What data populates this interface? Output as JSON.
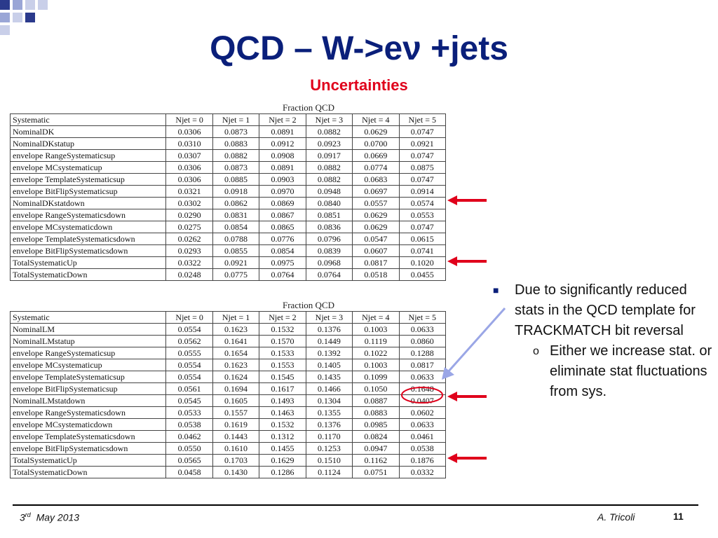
{
  "slide": {
    "title": "QCD – W->eν +jets",
    "subtitle": "Uncertainties"
  },
  "tables": [
    {
      "caption": "Fraction QCD",
      "headers": [
        "Systematic",
        "Njet = 0",
        "Njet = 1",
        "Njet = 2",
        "Njet = 3",
        "Njet = 4",
        "Njet = 5"
      ],
      "rows": [
        [
          "NominalDK",
          "0.0306",
          "0.0873",
          "0.0891",
          "0.0882",
          "0.0629",
          "0.0747"
        ],
        [
          "NominalDKstatup",
          "0.0310",
          "0.0883",
          "0.0912",
          "0.0923",
          "0.0700",
          "0.0921"
        ],
        [
          "envelope RangeSystematicsup",
          "0.0307",
          "0.0882",
          "0.0908",
          "0.0917",
          "0.0669",
          "0.0747"
        ],
        [
          "envelope MCsystematicup",
          "0.0306",
          "0.0873",
          "0.0891",
          "0.0882",
          "0.0774",
          "0.0875"
        ],
        [
          "envelope TemplateSystematicsup",
          "0.0306",
          "0.0885",
          "0.0903",
          "0.0882",
          "0.0683",
          "0.0747"
        ],
        [
          "envelope BitFlipSystematicsup",
          "0.0321",
          "0.0918",
          "0.0970",
          "0.0948",
          "0.0697",
          "0.0914"
        ],
        [
          "NominalDKstatdown",
          "0.0302",
          "0.0862",
          "0.0869",
          "0.0840",
          "0.0557",
          "0.0574"
        ],
        [
          "envelope RangeSystematicsdown",
          "0.0290",
          "0.0831",
          "0.0867",
          "0.0851",
          "0.0629",
          "0.0553"
        ],
        [
          "envelope MCsystematicdown",
          "0.0275",
          "0.0854",
          "0.0865",
          "0.0836",
          "0.0629",
          "0.0747"
        ],
        [
          "envelope TemplateSystematicsdown",
          "0.0262",
          "0.0788",
          "0.0776",
          "0.0796",
          "0.0547",
          "0.0615"
        ],
        [
          "envelope BitFlipSystematicsdown",
          "0.0293",
          "0.0855",
          "0.0854",
          "0.0839",
          "0.0607",
          "0.0741"
        ],
        [
          "TotalSystematicUp",
          "0.0322",
          "0.0921",
          "0.0975",
          "0.0968",
          "0.0817",
          "0.1020"
        ],
        [
          "TotalSystematicDown",
          "0.0248",
          "0.0775",
          "0.0764",
          "0.0764",
          "0.0518",
          "0.0455"
        ]
      ]
    },
    {
      "caption": "Fraction QCD",
      "headers": [
        "Systematic",
        "Njet = 0",
        "Njet = 1",
        "Njet = 2",
        "Njet = 3",
        "Njet = 4",
        "Njet = 5"
      ],
      "rows": [
        [
          "NominalLM",
          "0.0554",
          "0.1623",
          "0.1532",
          "0.1376",
          "0.1003",
          "0.0633"
        ],
        [
          "NominalLMstatup",
          "0.0562",
          "0.1641",
          "0.1570",
          "0.1449",
          "0.1119",
          "0.0860"
        ],
        [
          "envelope RangeSystematicsup",
          "0.0555",
          "0.1654",
          "0.1533",
          "0.1392",
          "0.1022",
          "0.1288"
        ],
        [
          "envelope MCsystematicup",
          "0.0554",
          "0.1623",
          "0.1553",
          "0.1405",
          "0.1003",
          "0.0817"
        ],
        [
          "envelope TemplateSystematicsup",
          "0.0554",
          "0.1624",
          "0.1545",
          "0.1435",
          "0.1099",
          "0.0633"
        ],
        [
          "envelope BitFlipSystematicsup",
          "0.0561",
          "0.1694",
          "0.1617",
          "0.1466",
          "0.1050",
          "0.1648"
        ],
        [
          "NominalLMstatdown",
          "0.0545",
          "0.1605",
          "0.1493",
          "0.1304",
          "0.0887",
          "0.0407"
        ],
        [
          "envelope RangeSystematicsdown",
          "0.0533",
          "0.1557",
          "0.1463",
          "0.1355",
          "0.0883",
          "0.0602"
        ],
        [
          "envelope MCsystematicdown",
          "0.0538",
          "0.1619",
          "0.1532",
          "0.1376",
          "0.0985",
          "0.0633"
        ],
        [
          "envelope TemplateSystematicsdown",
          "0.0462",
          "0.1443",
          "0.1312",
          "0.1170",
          "0.0824",
          "0.0461"
        ],
        [
          "envelope BitFlipSystematicsdown",
          "0.0550",
          "0.1610",
          "0.1455",
          "0.1253",
          "0.0947",
          "0.0538"
        ],
        [
          "TotalSystematicUp",
          "0.0565",
          "0.1703",
          "0.1629",
          "0.1510",
          "0.1162",
          "0.1876"
        ],
        [
          "TotalSystematicDown",
          "0.0458",
          "0.1430",
          "0.1286",
          "0.1124",
          "0.0751",
          "0.0332"
        ]
      ]
    }
  ],
  "bullets": {
    "main": "Due to significantly reduced stats in the QCD template for TRACKMATCH bit reversal",
    "sub": "Either we increase stat. or eliminate stat fluctuations from sys."
  },
  "footer": {
    "date_day": "3",
    "date_suffix": "rd",
    "date_rest": "May  2013",
    "author": "A. Tricoli",
    "page": "11"
  },
  "colors": {
    "title": "#0a1f7a",
    "subtitle": "#e0001b",
    "arrow": "#e0001b",
    "highlight_circle": "#e0001b",
    "pointer_arrow": "#9aa6e6"
  }
}
